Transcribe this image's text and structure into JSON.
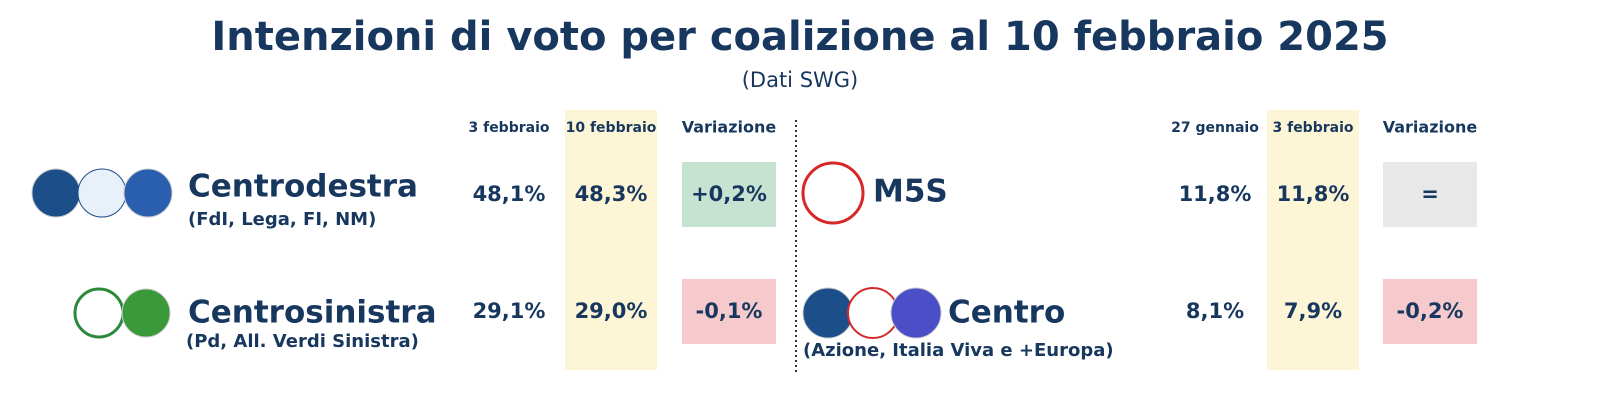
{
  "title": "Intenzioni di voto per coalizione al 10 febbraio 2025",
  "subtitle": "(Dati SWG)",
  "tables": [
    {
      "headers": [
        "3 febbraio",
        "10 febbraio",
        "Variazione"
      ],
      "rows": [
        {
          "name": "Centrodestra",
          "detail": "(FdI, Lega, FI, NM)",
          "values": [
            "48,1%",
            "48,3%",
            "+0,2%"
          ],
          "color": "#c5e3d0"
        },
        {
          "name": "Centrosinistra",
          "detail": "(Pd, All. Verdi Sinistra)",
          "values": [
            "29,1%",
            "29,0%",
            "-0,1%"
          ],
          "color": "#f6c9cd"
        }
      ]
    },
    {
      "headers": [
        "27 gennaio",
        "3 febbraio",
        "Variazione"
      ],
      "rows": [
        {
          "name": "M5S",
          "values": [
            "11,8%",
            "11,8%",
            "="
          ],
          "color": "#e8e8e8"
        },
        {
          "name": "Centro",
          "detail": "(Azione, Italia Viva e +Europa)",
          "values": [
            "8,1%",
            "7,9%",
            "-0,2%"
          ],
          "color": "#f6c9cd"
        }
      ]
    }
  ]
}
